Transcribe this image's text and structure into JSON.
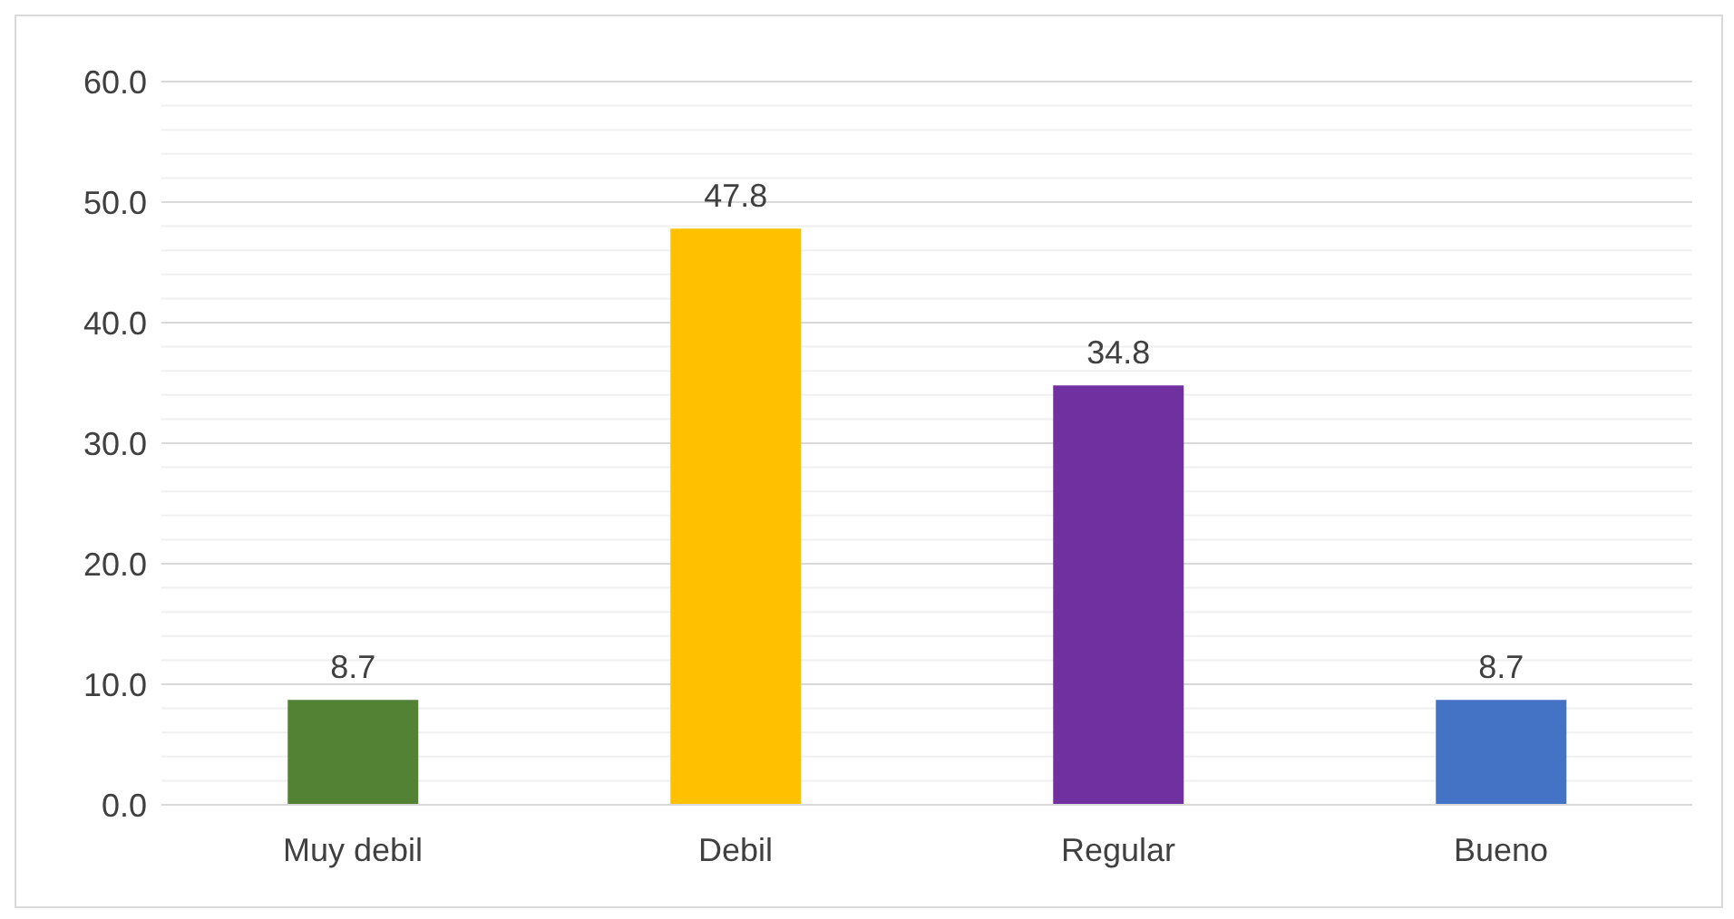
{
  "chart_data": {
    "type": "bar",
    "categories": [
      "Muy debil",
      "Debil",
      "Regular",
      "Bueno"
    ],
    "values": [
      8.7,
      47.8,
      34.8,
      8.7
    ],
    "colors": [
      "#548235",
      "#ffc000",
      "#7030a0",
      "#4472c4"
    ],
    "ylim": [
      0,
      60
    ],
    "yticks": [
      {
        "value": 0,
        "label": "0.0"
      },
      {
        "value": 2,
        "label": null
      },
      {
        "value": 4,
        "label": null
      },
      {
        "value": 6,
        "label": null
      },
      {
        "value": 8,
        "label": null
      },
      {
        "value": 10,
        "label": "10.0"
      },
      {
        "value": 12,
        "label": null
      },
      {
        "value": 14,
        "label": null
      },
      {
        "value": 16,
        "label": null
      },
      {
        "value": 18,
        "label": null
      },
      {
        "value": 20,
        "label": "20.0"
      },
      {
        "value": 22,
        "label": null
      },
      {
        "value": 24,
        "label": null
      },
      {
        "value": 26,
        "label": null
      },
      {
        "value": 28,
        "label": null
      },
      {
        "value": 30,
        "label": "30.0"
      },
      {
        "value": 32,
        "label": null
      },
      {
        "value": 34,
        "label": null
      },
      {
        "value": 36,
        "label": null
      },
      {
        "value": 38,
        "label": null
      },
      {
        "value": 40,
        "label": "40.0"
      },
      {
        "value": 42,
        "label": null
      },
      {
        "value": 44,
        "label": null
      },
      {
        "value": 46,
        "label": null
      },
      {
        "value": 48,
        "label": null
      },
      {
        "value": 50,
        "label": "50.0"
      },
      {
        "value": 52,
        "label": null
      },
      {
        "value": 54,
        "label": null
      },
      {
        "value": 56,
        "label": null
      },
      {
        "value": 58,
        "label": null
      },
      {
        "value": 60,
        "label": "60.0"
      }
    ],
    "grid": "y",
    "data_labels": true
  }
}
